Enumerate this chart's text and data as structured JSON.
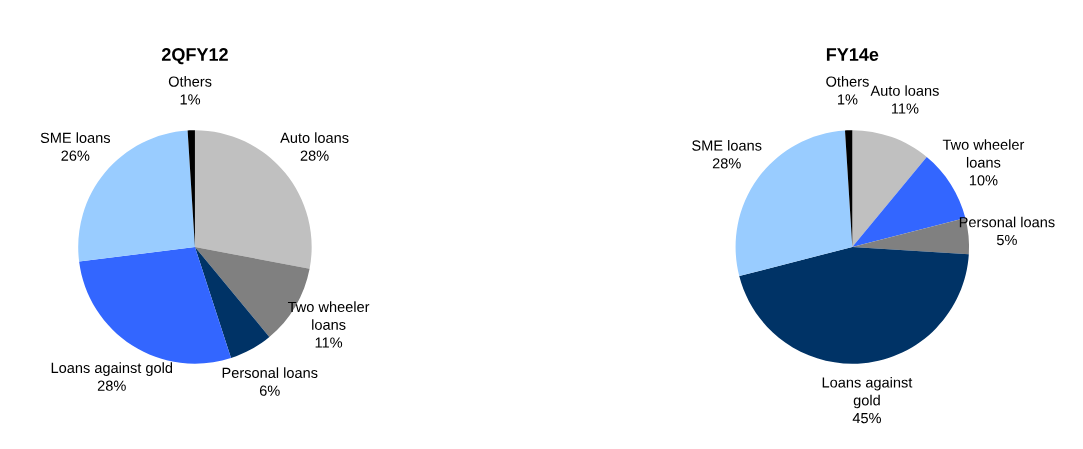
{
  "chart_data": [
    {
      "type": "pie",
      "title": "2QFY12",
      "categories": [
        "Auto loans",
        "Two wheeler\nloans",
        "Personal loans",
        "Loans against gold",
        "SME loans",
        "Others"
      ],
      "values": [
        28,
        11,
        6,
        28,
        26,
        1
      ],
      "value_labels": [
        "28%",
        "11%",
        "6%",
        "28%",
        "26%",
        "1%"
      ],
      "colors": [
        "#c0c0c0",
        "#808080",
        "#003366",
        "#3366ff",
        "#99ccff",
        "#000000"
      ]
    },
    {
      "type": "pie",
      "title": "FY14e",
      "categories": [
        "Auto loans",
        "Two wheeler\nloans",
        "Personal loans",
        "Loans against\ngold",
        "SME loans",
        "Others"
      ],
      "values": [
        11,
        10,
        5,
        45,
        28,
        1
      ],
      "value_labels": [
        "11%",
        "10%",
        "5%",
        "45%",
        "28%",
        "1%"
      ],
      "colors": [
        "#c0c0c0",
        "#3366ff",
        "#808080",
        "#003366",
        "#99ccff",
        "#000000"
      ]
    }
  ]
}
